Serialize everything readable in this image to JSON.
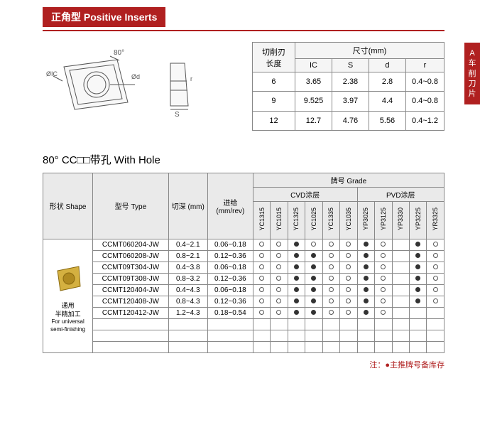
{
  "title": "正角型 Positive Inserts",
  "sideTab": "A 车削刀片",
  "dimTable": {
    "header1": "切削刃长度",
    "header2": "尺寸(mm)",
    "cols": [
      "IC",
      "S",
      "d",
      "r"
    ],
    "rows": [
      {
        "len": "6",
        "ic": "3.65",
        "s": "2.38",
        "d": "2.8",
        "r": "0.4~0.8"
      },
      {
        "len": "9",
        "ic": "9.525",
        "s": "3.97",
        "d": "4.4",
        "r": "0.4~0.8"
      },
      {
        "len": "12",
        "ic": "12.7",
        "s": "4.76",
        "d": "5.56",
        "r": "0.4~1.2"
      }
    ]
  },
  "subtitle": "80°  CC□□带孔 With Hole",
  "mainTable": {
    "headers": {
      "shape": "形状\nShape",
      "type": "型号\nType",
      "depth": "切深\n(mm)",
      "feed": "进给\n(mm/rev)",
      "grade": "牌号 Grade",
      "cvd": "CVD涂层",
      "pvd": "PVD涂层"
    },
    "gradeCols": [
      "YC1315",
      "YC1015",
      "YC1325",
      "YC1025",
      "YC1335",
      "YC1035",
      "YP3025",
      "YP3125",
      "YP3330",
      "YP3225",
      "YR3325"
    ],
    "shapeCell": {
      "line1": "通用",
      "line2": "半精加工",
      "line3": "For universal",
      "line4": "semi-finishing"
    },
    "rows": [
      {
        "type": "CCMT060204-JW",
        "depth": "0.4~2.1",
        "feed": "0.06~0.18",
        "m": [
          "o",
          "o",
          "f",
          "o",
          "o",
          "o",
          "f",
          "o",
          "",
          "f",
          "o"
        ]
      },
      {
        "type": "CCMT060208-JW",
        "depth": "0.8~2.1",
        "feed": "0.12~0.36",
        "m": [
          "o",
          "o",
          "f",
          "f",
          "o",
          "o",
          "f",
          "o",
          "",
          "f",
          "o"
        ]
      },
      {
        "type": "CCMT09T304-JW",
        "depth": "0.4~3.8",
        "feed": "0.06~0.18",
        "m": [
          "o",
          "o",
          "f",
          "f",
          "o",
          "o",
          "f",
          "o",
          "",
          "f",
          "o"
        ]
      },
      {
        "type": "CCMT09T308-JW",
        "depth": "0.8~3.2",
        "feed": "0.12~0.36",
        "m": [
          "o",
          "o",
          "f",
          "f",
          "o",
          "o",
          "f",
          "o",
          "",
          "f",
          "o"
        ]
      },
      {
        "type": "CCMT120404-JW",
        "depth": "0.4~4.3",
        "feed": "0.06~0.18",
        "m": [
          "o",
          "o",
          "f",
          "f",
          "o",
          "o",
          "f",
          "o",
          "",
          "f",
          "o"
        ]
      },
      {
        "type": "CCMT120408-JW",
        "depth": "0.8~4.3",
        "feed": "0.12~0.36",
        "m": [
          "o",
          "o",
          "f",
          "f",
          "o",
          "o",
          "f",
          "o",
          "",
          "f",
          "o"
        ]
      },
      {
        "type": "CCMT120412-JW",
        "depth": "1.2~4.3",
        "feed": "0.18~0.54",
        "m": [
          "o",
          "o",
          "f",
          "f",
          "o",
          "o",
          "f",
          "o",
          "",
          "",
          ""
        ]
      }
    ],
    "emptyRows": 3
  },
  "footnote": "注：●主推牌号备库存"
}
